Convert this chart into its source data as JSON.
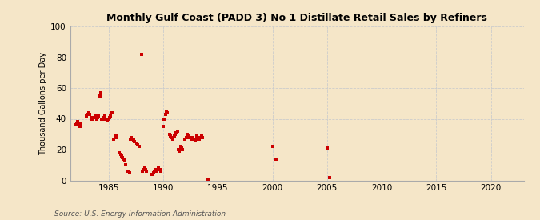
{
  "title": "Monthly Gulf Coast (PADD 3) No 1 Distillate Retail Sales by Refiners",
  "ylabel": "Thousand Gallons per Day",
  "source": "Source: U.S. Energy Information Administration",
  "background_color": "#f5e6c8",
  "plot_bg_color": "#f5e6c8",
  "marker_color": "#cc0000",
  "marker_size": 8,
  "xlim": [
    1981.5,
    2023
  ],
  "ylim": [
    0,
    100
  ],
  "yticks": [
    0,
    20,
    40,
    60,
    80,
    100
  ],
  "xticks": [
    1985,
    1990,
    1995,
    2000,
    2005,
    2010,
    2015,
    2020
  ],
  "data_x": [
    1982.0,
    1982.1,
    1982.2,
    1982.3,
    1982.4,
    1982.5,
    1983.0,
    1983.1,
    1983.2,
    1983.3,
    1983.4,
    1983.5,
    1983.6,
    1983.7,
    1983.8,
    1983.9,
    1984.0,
    1984.1,
    1984.2,
    1984.3,
    1984.4,
    1984.5,
    1984.6,
    1984.7,
    1984.8,
    1984.9,
    1985.0,
    1985.1,
    1985.2,
    1985.3,
    1985.5,
    1985.6,
    1985.7,
    1985.8,
    1986.0,
    1986.1,
    1986.2,
    1986.3,
    1986.4,
    1986.5,
    1986.6,
    1986.8,
    1986.9,
    1987.0,
    1987.1,
    1987.2,
    1987.3,
    1987.4,
    1987.6,
    1987.7,
    1987.8,
    1988.0,
    1988.1,
    1988.2,
    1988.3,
    1988.4,
    1988.5,
    1989.0,
    1989.1,
    1989.2,
    1989.3,
    1989.4,
    1989.5,
    1989.6,
    1989.7,
    1989.8,
    1990.0,
    1990.1,
    1990.2,
    1990.3,
    1990.4,
    1990.6,
    1990.7,
    1990.8,
    1990.9,
    1991.0,
    1991.1,
    1991.2,
    1991.3,
    1991.4,
    1991.5,
    1991.6,
    1991.7,
    1991.8,
    1992.0,
    1992.1,
    1992.2,
    1992.3,
    1992.4,
    1992.6,
    1992.7,
    1992.8,
    1992.9,
    1993.0,
    1993.1,
    1993.2,
    1993.3,
    1993.5,
    1993.6,
    1994.1,
    2000.0,
    2000.3,
    2005.0,
    2005.2
  ],
  "data_y": [
    36,
    37,
    38,
    36,
    35,
    37,
    42,
    43,
    44,
    43,
    41,
    40,
    40,
    41,
    42,
    40,
    41,
    42,
    55,
    57,
    40,
    41,
    40,
    42,
    40,
    39,
    40,
    41,
    42,
    44,
    27,
    28,
    29,
    28,
    18,
    17,
    16,
    15,
    14,
    13,
    10,
    6,
    5,
    27,
    28,
    27,
    26,
    25,
    24,
    23,
    22,
    82,
    6,
    7,
    8,
    7,
    6,
    4,
    5,
    6,
    7,
    6,
    7,
    8,
    7,
    6,
    35,
    40,
    43,
    45,
    44,
    30,
    29,
    28,
    27,
    29,
    30,
    31,
    32,
    20,
    19,
    22,
    21,
    20,
    27,
    28,
    30,
    29,
    28,
    27,
    28,
    27,
    26,
    27,
    29,
    28,
    27,
    29,
    28,
    1,
    22,
    14,
    21,
    2
  ]
}
